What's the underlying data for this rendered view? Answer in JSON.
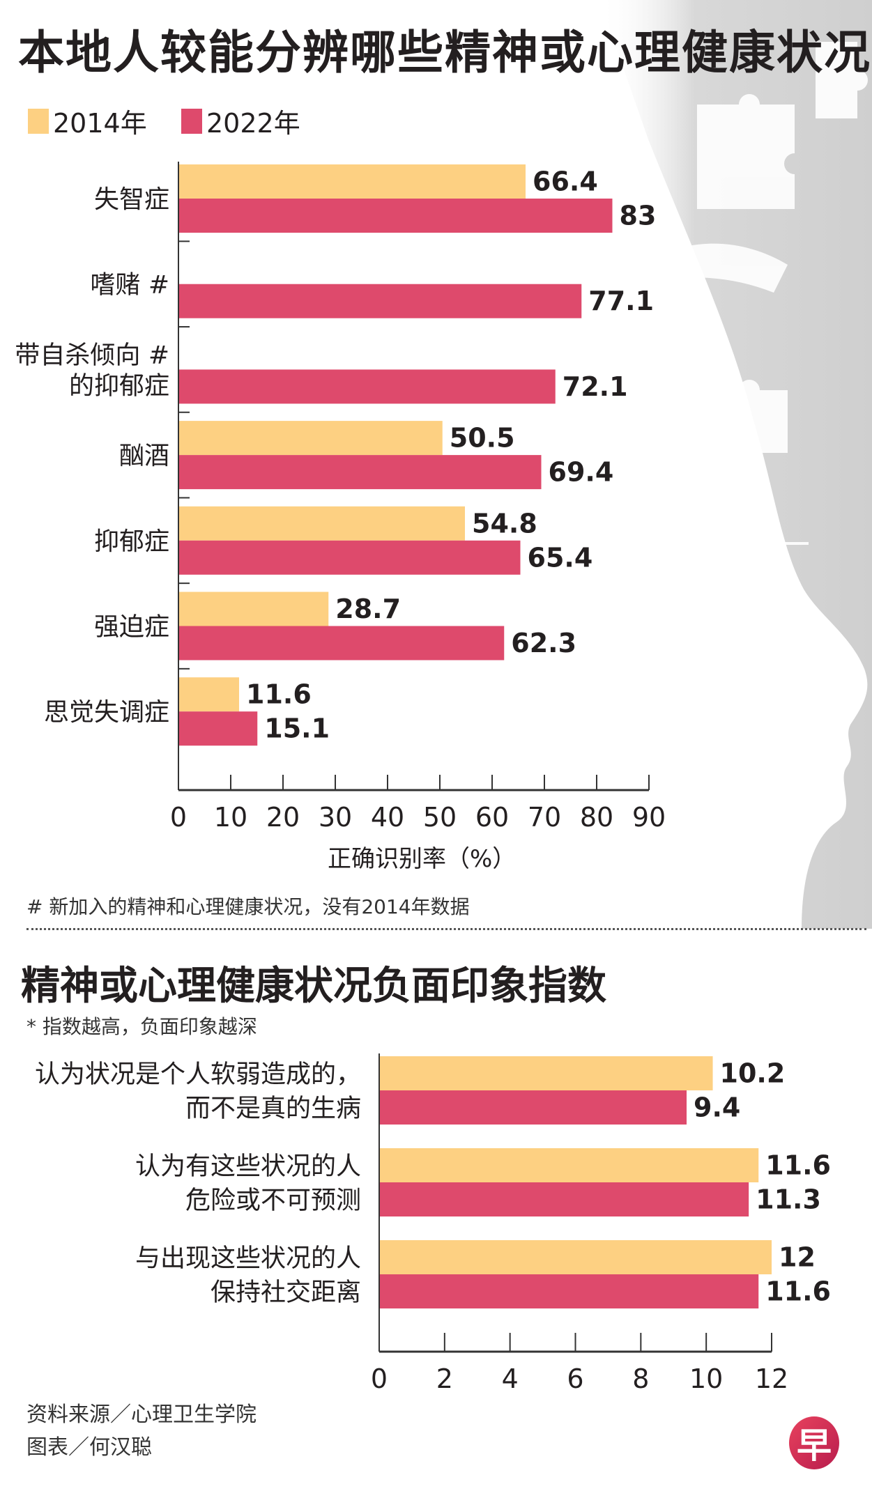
{
  "colors": {
    "y2014": "#FDD082",
    "y2022": "#DE4A6C",
    "background_gray": "#D4D4D4"
  },
  "legend": [
    {
      "label": "2014年",
      "color": "#FDD082"
    },
    {
      "label": "2022年",
      "color": "#DE4A6C"
    }
  ],
  "chart_data": [
    {
      "type": "bar",
      "orientation": "horizontal",
      "title": "本地人较能分辨哪些精神或心理健康状况",
      "categories": [
        [
          "失智症"
        ],
        [
          "嗜赌 #"
        ],
        [
          "带自杀倾向 #",
          "的抑郁症"
        ],
        [
          "酗酒"
        ],
        [
          "抑郁症"
        ],
        [
          "强迫症"
        ],
        [
          "思觉失调症"
        ]
      ],
      "series": [
        {
          "name": "2014年",
          "values": [
            66.4,
            null,
            null,
            50.5,
            54.8,
            28.7,
            11.6
          ]
        },
        {
          "name": "2022年",
          "values": [
            83,
            77.1,
            72.1,
            69.4,
            65.4,
            62.3,
            15.1
          ]
        }
      ],
      "xlabel": "正确识别率（%）",
      "xlim": [
        0,
        90
      ],
      "xticks": [
        "0",
        "10",
        "20",
        "30",
        "40",
        "50",
        "60",
        "70",
        "80",
        "90"
      ],
      "legend_position": "top-left",
      "grid": false,
      "footnote": "# 新加入的精神和心理健康状况，没有2014年数据"
    },
    {
      "type": "bar",
      "orientation": "horizontal",
      "title": "精神或心理健康状况负面印象指数",
      "subtitle": "* 指数越高，负面印象越深",
      "categories": [
        [
          "认为状况是个人软弱造成的，",
          "而不是真的生病"
        ],
        [
          "认为有这些状况的人",
          "危险或不可预测"
        ],
        [
          "与出现这些状况的人",
          "保持社交距离"
        ]
      ],
      "series": [
        {
          "name": "2014年",
          "values": [
            10.2,
            11.6,
            12
          ]
        },
        {
          "name": "2022年",
          "values": [
            9.4,
            11.3,
            11.6
          ]
        }
      ],
      "xlim": [
        0,
        12
      ],
      "xticks": [
        "0",
        "2",
        "4",
        "6",
        "8",
        "10",
        "12"
      ],
      "grid": false
    }
  ],
  "footer": {
    "source": "资料来源／心理卫生学院",
    "graphic": "图表／何汉聪",
    "logo_text": "早"
  }
}
